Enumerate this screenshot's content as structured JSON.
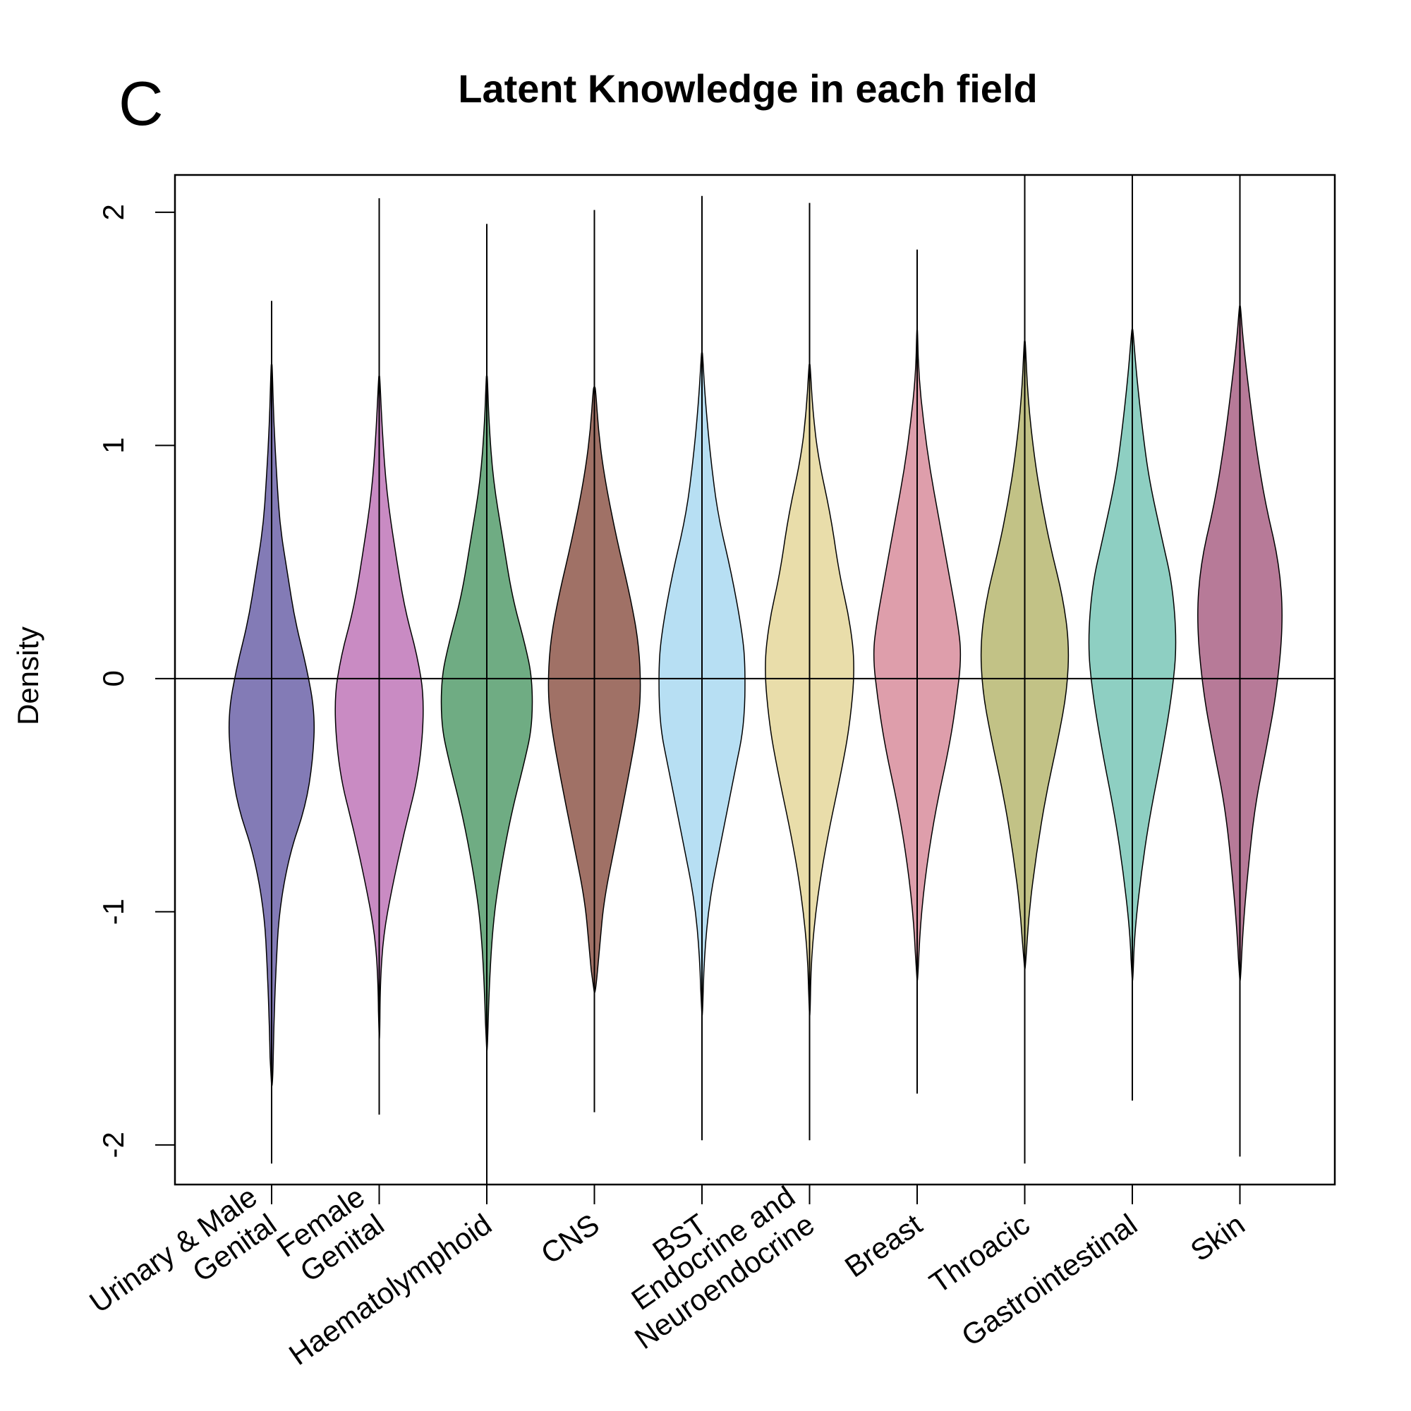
{
  "panel_letter": "C",
  "chart_data": {
    "type": "violin",
    "title": "Latent Knowledge in each field",
    "xlabel": "",
    "ylabel": "Density",
    "ylim": [
      -2.17,
      2.16
    ],
    "yticks": [
      -2,
      -1,
      0,
      1,
      2
    ],
    "ytick_labels": [
      "-2",
      "-1",
      "0",
      "1",
      "2"
    ],
    "reference_line_y": 0,
    "categories": [
      {
        "label_lines": [
          "Urinary & Male",
          "Genital"
        ],
        "color": "#837bb6",
        "range": [
          -2.08,
          1.62
        ],
        "profile": [
          [
            -1.75,
            0.01
          ],
          [
            -1.5,
            0.02
          ],
          [
            -1.25,
            0.04
          ],
          [
            -1.0,
            0.07
          ],
          [
            -0.75,
            0.17
          ],
          [
            -0.55,
            0.32
          ],
          [
            -0.35,
            0.39
          ],
          [
            -0.15,
            0.41
          ],
          [
            0.05,
            0.33
          ],
          [
            0.25,
            0.22
          ],
          [
            0.45,
            0.15
          ],
          [
            0.65,
            0.08
          ],
          [
            0.85,
            0.05
          ],
          [
            1.1,
            0.02
          ],
          [
            1.35,
            0.005
          ]
        ]
      },
      {
        "label_lines": [
          "Female",
          "Genital"
        ],
        "color": "#c98bc3",
        "range": [
          -1.87,
          2.06
        ],
        "profile": [
          [
            -1.55,
            0.005
          ],
          [
            -1.3,
            0.01
          ],
          [
            -1.1,
            0.04
          ],
          [
            -0.9,
            0.12
          ],
          [
            -0.65,
            0.24
          ],
          [
            -0.4,
            0.38
          ],
          [
            -0.1,
            0.43
          ],
          [
            0.1,
            0.36
          ],
          [
            0.3,
            0.24
          ],
          [
            0.55,
            0.15
          ],
          [
            0.8,
            0.07
          ],
          [
            1.05,
            0.03
          ],
          [
            1.3,
            0.005
          ]
        ]
      },
      {
        "label_lines": [
          "Haematolymphoid"
        ],
        "color": "#6fac83",
        "range": [
          -2.17,
          1.95
        ],
        "profile": [
          [
            -1.6,
            0.005
          ],
          [
            -1.35,
            0.02
          ],
          [
            -1.1,
            0.05
          ],
          [
            -0.9,
            0.1
          ],
          [
            -0.6,
            0.22
          ],
          [
            -0.35,
            0.36
          ],
          [
            -0.2,
            0.43
          ],
          [
            0.0,
            0.43
          ],
          [
            0.15,
            0.36
          ],
          [
            0.35,
            0.24
          ],
          [
            0.6,
            0.15
          ],
          [
            0.85,
            0.06
          ],
          [
            1.1,
            0.02
          ],
          [
            1.3,
            0.005
          ]
        ]
      },
      {
        "label_lines": [
          "CNS"
        ],
        "color": "#a07166",
        "range": [
          -1.86,
          2.01
        ],
        "profile": [
          [
            -1.35,
            0.01
          ],
          [
            -1.15,
            0.05
          ],
          [
            -0.95,
            0.09
          ],
          [
            -0.7,
            0.2
          ],
          [
            -0.45,
            0.31
          ],
          [
            -0.2,
            0.41
          ],
          [
            -0.05,
            0.44
          ],
          [
            0.15,
            0.42
          ],
          [
            0.35,
            0.34
          ],
          [
            0.6,
            0.21
          ],
          [
            0.85,
            0.1
          ],
          [
            1.05,
            0.04
          ],
          [
            1.25,
            0.01
          ]
        ]
      },
      {
        "label_lines": [
          "BST"
        ],
        "color": "#b7dff3",
        "range": [
          -1.98,
          2.07
        ],
        "profile": [
          [
            -1.45,
            0.005
          ],
          [
            -1.2,
            0.02
          ],
          [
            -0.95,
            0.07
          ],
          [
            -0.7,
            0.18
          ],
          [
            -0.4,
            0.31
          ],
          [
            -0.2,
            0.4
          ],
          [
            0.05,
            0.41
          ],
          [
            0.2,
            0.38
          ],
          [
            0.45,
            0.28
          ],
          [
            0.7,
            0.15
          ],
          [
            0.95,
            0.08
          ],
          [
            1.2,
            0.03
          ],
          [
            1.4,
            0.005
          ]
        ]
      },
      {
        "label_lines": [
          "Endocrine and",
          "Neuroendocrine"
        ],
        "color": "#e9ddaa",
        "range": [
          -1.98,
          2.04
        ],
        "profile": [
          [
            -1.45,
            0.005
          ],
          [
            -1.2,
            0.015
          ],
          [
            -0.95,
            0.07
          ],
          [
            -0.7,
            0.16
          ],
          [
            -0.4,
            0.3
          ],
          [
            -0.2,
            0.38
          ],
          [
            0.05,
            0.43
          ],
          [
            0.25,
            0.38
          ],
          [
            0.45,
            0.28
          ],
          [
            0.7,
            0.2
          ],
          [
            0.95,
            0.08
          ],
          [
            1.15,
            0.03
          ],
          [
            1.35,
            0.005
          ]
        ]
      },
      {
        "label_lines": [
          "Breast"
        ],
        "color": "#de9eab",
        "range": [
          -1.78,
          1.84
        ],
        "profile": [
          [
            -1.3,
            0.005
          ],
          [
            -1.05,
            0.03
          ],
          [
            -0.8,
            0.09
          ],
          [
            -0.55,
            0.18
          ],
          [
            -0.3,
            0.3
          ],
          [
            -0.1,
            0.37
          ],
          [
            0.1,
            0.42
          ],
          [
            0.25,
            0.38
          ],
          [
            0.45,
            0.3
          ],
          [
            0.7,
            0.2
          ],
          [
            0.9,
            0.12
          ],
          [
            1.1,
            0.06
          ],
          [
            1.3,
            0.015
          ],
          [
            1.5,
            0.003
          ]
        ]
      },
      {
        "label_lines": [
          "Throacic"
        ],
        "color": "#c2c286",
        "range": [
          -2.08,
          2.16
        ],
        "profile": [
          [
            -1.25,
            0.005
          ],
          [
            -1.0,
            0.04
          ],
          [
            -0.75,
            0.11
          ],
          [
            -0.5,
            0.2
          ],
          [
            -0.25,
            0.32
          ],
          [
            -0.05,
            0.4
          ],
          [
            0.15,
            0.42
          ],
          [
            0.35,
            0.36
          ],
          [
            0.55,
            0.25
          ],
          [
            0.75,
            0.16
          ],
          [
            0.95,
            0.09
          ],
          [
            1.2,
            0.03
          ],
          [
            1.45,
            0.005
          ]
        ]
      },
      {
        "label_lines": [
          "Gastrointestinal"
        ],
        "color": "#8ecfc2",
        "range": [
          -1.81,
          2.16
        ],
        "profile": [
          [
            -1.3,
            0.005
          ],
          [
            -1.1,
            0.02
          ],
          [
            -0.85,
            0.08
          ],
          [
            -0.6,
            0.16
          ],
          [
            -0.3,
            0.29
          ],
          [
            -0.05,
            0.38
          ],
          [
            0.15,
            0.42
          ],
          [
            0.4,
            0.38
          ],
          [
            0.6,
            0.28
          ],
          [
            0.85,
            0.16
          ],
          [
            1.05,
            0.1
          ],
          [
            1.3,
            0.04
          ],
          [
            1.5,
            0.005
          ]
        ]
      },
      {
        "label_lines": [
          "Skin"
        ],
        "color": "#b77a98",
        "range": [
          -2.05,
          2.16
        ],
        "profile": [
          [
            -1.3,
            0.005
          ],
          [
            -1.1,
            0.025
          ],
          [
            -0.85,
            0.07
          ],
          [
            -0.55,
            0.14
          ],
          [
            -0.3,
            0.25
          ],
          [
            -0.05,
            0.35
          ],
          [
            0.25,
            0.41
          ],
          [
            0.5,
            0.37
          ],
          [
            0.75,
            0.24
          ],
          [
            1.0,
            0.15
          ],
          [
            1.25,
            0.08
          ],
          [
            1.45,
            0.03
          ],
          [
            1.6,
            0.005
          ]
        ]
      }
    ]
  }
}
